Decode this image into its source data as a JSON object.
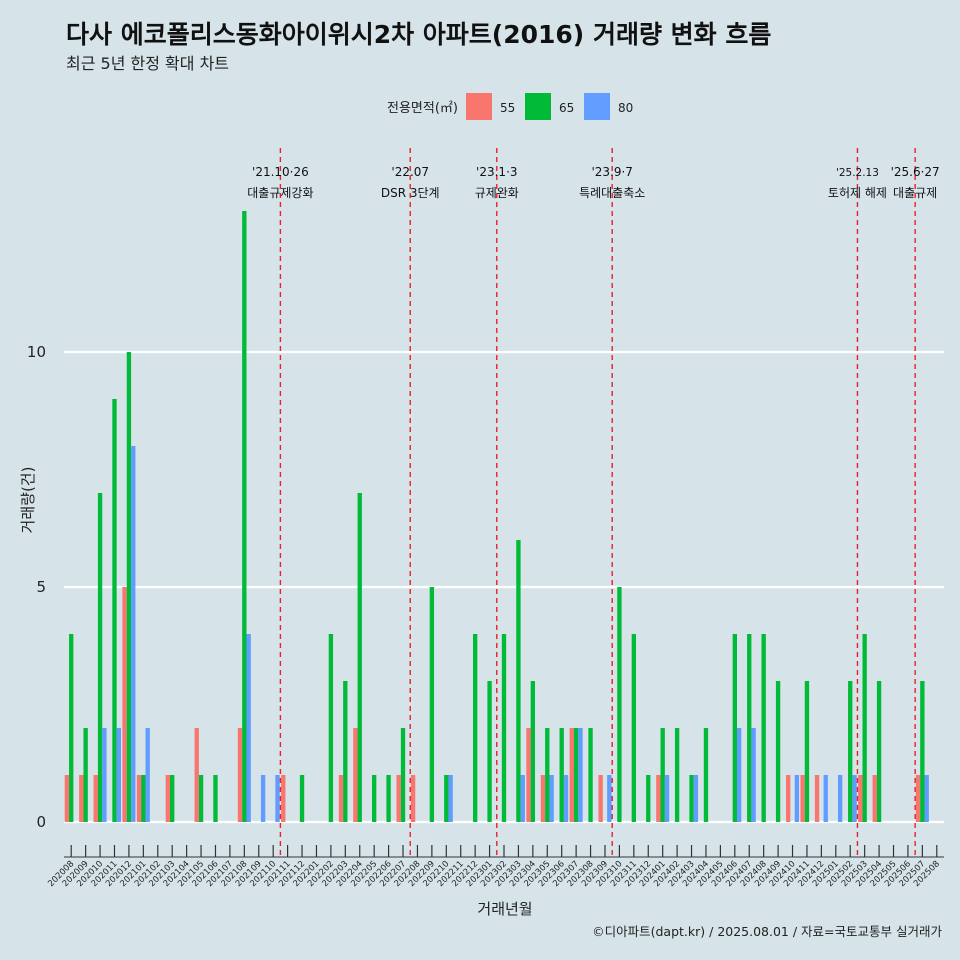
{
  "chart_data": {
    "type": "bar",
    "title": "다사 에코폴리스동화아이위시2차 아파트(2016) 거래량 변화 흐름",
    "subtitle": "최근 5년 한정 확대 차트",
    "xlabel": "거래년월",
    "ylabel": "거래량(건)",
    "ylim": [
      0,
      13
    ],
    "yticks": [
      0,
      5,
      10
    ],
    "legend_title": "전용면적(㎡)",
    "legend_position": "top",
    "caption": "©디아파트(dapt.kr) / 2025.08.01 / 자료=국토교통부 실거래가",
    "categories": [
      "202008",
      "202009",
      "202010",
      "202011",
      "202012",
      "202101",
      "202102",
      "202103",
      "202104",
      "202105",
      "202106",
      "202107",
      "202108",
      "202109",
      "202110",
      "202111",
      "202112",
      "202201",
      "202202",
      "202203",
      "202204",
      "202205",
      "202206",
      "202207",
      "202208",
      "202209",
      "202210",
      "202211",
      "202212",
      "202301",
      "202302",
      "202303",
      "202304",
      "202305",
      "202306",
      "202307",
      "202308",
      "202309",
      "202310",
      "202311",
      "202312",
      "202401",
      "202402",
      "202403",
      "202404",
      "202405",
      "202406",
      "202407",
      "202408",
      "202409",
      "202410",
      "202411",
      "202412",
      "202501",
      "202502",
      "202503",
      "202504",
      "202505",
      "202506",
      "202507",
      "202508"
    ],
    "series": [
      {
        "name": "55",
        "color": "#f8766d",
        "values": [
          1,
          1,
          1,
          0,
          5,
          1,
          0,
          1,
          0,
          2,
          0,
          0,
          2,
          0,
          0,
          1,
          0,
          0,
          0,
          1,
          2,
          0,
          0,
          1,
          1,
          0,
          0,
          0,
          0,
          0,
          0,
          0,
          2,
          1,
          0,
          2,
          0,
          1,
          0,
          0,
          0,
          1,
          0,
          0,
          0,
          0,
          0,
          0,
          0,
          0,
          1,
          1,
          1,
          0,
          0,
          1,
          1,
          0,
          0,
          1,
          0
        ]
      },
      {
        "name": "65",
        "color": "#00ba38",
        "values": [
          4,
          2,
          7,
          9,
          10,
          1,
          0,
          1,
          0,
          1,
          1,
          0,
          13,
          0,
          0,
          0,
          1,
          0,
          4,
          3,
          7,
          1,
          1,
          2,
          0,
          5,
          1,
          0,
          4,
          3,
          4,
          6,
          3,
          2,
          2,
          2,
          2,
          0,
          5,
          4,
          1,
          2,
          2,
          1,
          2,
          0,
          4,
          4,
          4,
          3,
          0,
          3,
          0,
          0,
          3,
          4,
          3,
          0,
          0,
          3,
          0
        ]
      },
      {
        "name": "80",
        "color": "#619cff",
        "values": [
          0,
          0,
          2,
          2,
          8,
          2,
          0,
          0,
          0,
          0,
          0,
          0,
          4,
          1,
          1,
          0,
          0,
          0,
          0,
          0,
          0,
          0,
          0,
          0,
          0,
          0,
          1,
          0,
          0,
          0,
          0,
          1,
          0,
          1,
          1,
          2,
          0,
          1,
          0,
          0,
          0,
          1,
          0,
          1,
          0,
          0,
          2,
          2,
          0,
          0,
          1,
          0,
          1,
          1,
          1,
          0,
          0,
          0,
          0,
          1,
          0
        ]
      }
    ],
    "events": [
      {
        "after": "202110",
        "date": "'21.10·26",
        "label": "대출규제강화"
      },
      {
        "after": "202207",
        "date": "'22.07",
        "label": "DSR 3단계"
      },
      {
        "after": "202301",
        "date": "'23.1·3",
        "label": "규제완화"
      },
      {
        "after": "202309",
        "date": "'23.9·7",
        "label": "특례대출축소"
      },
      {
        "after": "202502",
        "date": "'25.2.13",
        "label": "토허제 해제"
      },
      {
        "after": "202506",
        "date": "'25.6·27",
        "label": "대출규제"
      }
    ],
    "grid": true
  }
}
